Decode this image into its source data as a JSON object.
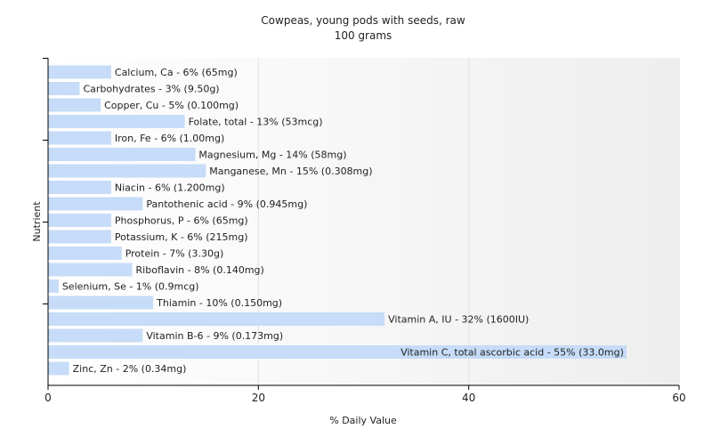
{
  "chart_data": {
    "type": "bar",
    "orientation": "horizontal",
    "title": "Cowpeas, young pods with seeds, raw",
    "subtitle": "100 grams",
    "xlabel": "% Daily Value",
    "ylabel": "Nutrient",
    "xlim": [
      0,
      60
    ],
    "xticks": [
      "0",
      "20",
      "40",
      "60"
    ],
    "grid": true,
    "bar_color": "#c6dcf8",
    "categories": [
      "Calcium, Ca",
      "Carbohydrates",
      "Copper, Cu",
      "Folate, total",
      "Iron, Fe",
      "Magnesium, Mg",
      "Manganese, Mn",
      "Niacin",
      "Pantothenic acid",
      "Phosphorus, P",
      "Potassium, K",
      "Protein",
      "Riboflavin",
      "Selenium, Se",
      "Thiamin",
      "Vitamin A, IU",
      "Vitamin B-6",
      "Vitamin C, total ascorbic acid",
      "Zinc, Zn"
    ],
    "values": [
      6,
      3,
      5,
      13,
      6,
      14,
      15,
      6,
      9,
      6,
      6,
      7,
      8,
      1,
      10,
      32,
      9,
      55,
      2
    ],
    "labels": [
      "Calcium, Ca - 6% (65mg)",
      "Carbohydrates - 3% (9.50g)",
      "Copper, Cu - 5% (0.100mg)",
      "Folate, total - 13% (53mcg)",
      "Iron, Fe - 6% (1.00mg)",
      "Magnesium, Mg - 14% (58mg)",
      "Manganese, Mn - 15% (0.308mg)",
      "Niacin - 6% (1.200mg)",
      "Pantothenic acid - 9% (0.945mg)",
      "Phosphorus, P - 6% (65mg)",
      "Potassium, K - 6% (215mg)",
      "Protein - 7% (3.30g)",
      "Riboflavin - 8% (0.140mg)",
      "Selenium, Se - 1% (0.9mcg)",
      "Thiamin - 10% (0.150mg)",
      "Vitamin A, IU - 32% (1600IU)",
      "Vitamin B-6 - 9% (0.173mg)",
      "Vitamin C, total ascorbic acid - 55% (33.0mg)",
      "Zinc, Zn - 2% (0.34mg)"
    ]
  }
}
